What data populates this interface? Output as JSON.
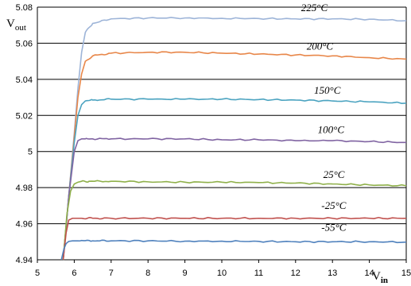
{
  "chart_data": {
    "type": "line",
    "title": "",
    "xlabel": {
      "main": "V",
      "sub": "in"
    },
    "ylabel": {
      "main": "V",
      "sub": "out"
    },
    "xlim": [
      5,
      15
    ],
    "ylim": [
      4.94,
      5.08
    ],
    "x_ticks": [
      "5",
      "6",
      "7",
      "8",
      "9",
      "10",
      "11",
      "12",
      "13",
      "14",
      "15"
    ],
    "y_ticks": [
      "4.94",
      "4.96",
      "4.98",
      "5",
      "5.02",
      "5.04",
      "5.06",
      "5.08"
    ],
    "grid": "horizontal",
    "series": [
      {
        "name": "225°C",
        "color": "#9db4d8",
        "x": [
          5.7,
          5.85,
          6.0,
          6.1,
          6.2,
          6.3,
          6.5,
          7.0,
          8.0,
          9.0,
          10.0,
          11.0,
          12.0,
          13.0,
          14.0,
          15.0
        ],
        "y": [
          4.94,
          4.975,
          5.01,
          5.035,
          5.055,
          5.066,
          5.071,
          5.0735,
          5.074,
          5.074,
          5.0738,
          5.0737,
          5.0735,
          5.0735,
          5.0733,
          5.0725
        ]
      },
      {
        "name": "200°C",
        "color": "#e8874a",
        "x": [
          5.7,
          5.85,
          6.0,
          6.1,
          6.2,
          6.3,
          6.5,
          7.0,
          8.0,
          9.0,
          10.0,
          11.0,
          12.0,
          13.0,
          14.0,
          15.0
        ],
        "y": [
          4.94,
          4.975,
          5.008,
          5.03,
          5.043,
          5.05,
          5.053,
          5.0545,
          5.055,
          5.055,
          5.0545,
          5.054,
          5.0535,
          5.053,
          5.052,
          5.0512
        ]
      },
      {
        "name": "150°C",
        "color": "#4ba3c0",
        "x": [
          5.7,
          5.85,
          6.0,
          6.1,
          6.2,
          6.3,
          6.5,
          7.0,
          8.0,
          9.0,
          10.0,
          11.0,
          12.0,
          13.0,
          14.0,
          15.0
        ],
        "y": [
          4.94,
          4.975,
          5.005,
          5.02,
          5.026,
          5.028,
          5.0285,
          5.029,
          5.029,
          5.029,
          5.029,
          5.0288,
          5.0285,
          5.028,
          5.0275,
          5.0268
        ]
      },
      {
        "name": "100°C",
        "color": "#8064a2",
        "x": [
          5.7,
          5.85,
          6.0,
          6.1,
          6.2,
          6.3,
          6.5,
          7.0,
          8.0,
          9.0,
          10.0,
          11.0,
          12.0,
          13.0,
          14.0,
          15.0
        ],
        "y": [
          4.94,
          4.975,
          5.0,
          5.006,
          5.007,
          5.007,
          5.007,
          5.007,
          5.007,
          5.007,
          5.0065,
          5.0065,
          5.006,
          5.006,
          5.0055,
          5.005
        ]
      },
      {
        "name": "25°C",
        "color": "#8fb04a",
        "x": [
          5.7,
          5.8,
          5.9,
          6.0,
          6.1,
          6.2,
          6.4,
          7.0,
          8.0,
          9.0,
          10.0,
          11.0,
          12.0,
          13.0,
          14.0,
          15.0
        ],
        "y": [
          4.94,
          4.965,
          4.978,
          4.982,
          4.983,
          4.9835,
          4.9835,
          4.9835,
          4.9832,
          4.983,
          4.983,
          4.9828,
          4.9825,
          4.982,
          4.9815,
          4.981
        ]
      },
      {
        "name": "-25°C",
        "color": "#c0504d",
        "x": [
          5.7,
          5.78,
          5.85,
          5.95,
          6.05,
          6.2,
          6.5,
          7.0,
          8.0,
          9.0,
          10.0,
          11.0,
          12.0,
          13.0,
          14.0,
          15.0
        ],
        "y": [
          4.94,
          4.955,
          4.962,
          4.963,
          4.963,
          4.963,
          4.963,
          4.963,
          4.963,
          4.963,
          4.963,
          4.963,
          4.963,
          4.963,
          4.963,
          4.963
        ]
      },
      {
        "name": "-55°C",
        "color": "#4f81bd",
        "x": [
          5.65,
          5.72,
          5.78,
          5.85,
          5.95,
          6.1,
          6.5,
          7.0,
          8.0,
          9.0,
          10.0,
          11.0,
          12.0,
          13.0,
          14.0,
          15.0
        ],
        "y": [
          4.94,
          4.946,
          4.949,
          4.9502,
          4.9505,
          4.9505,
          4.9505,
          4.9505,
          4.9505,
          4.9503,
          4.9503,
          4.9502,
          4.95,
          4.95,
          4.95,
          4.9498
        ]
      }
    ]
  }
}
